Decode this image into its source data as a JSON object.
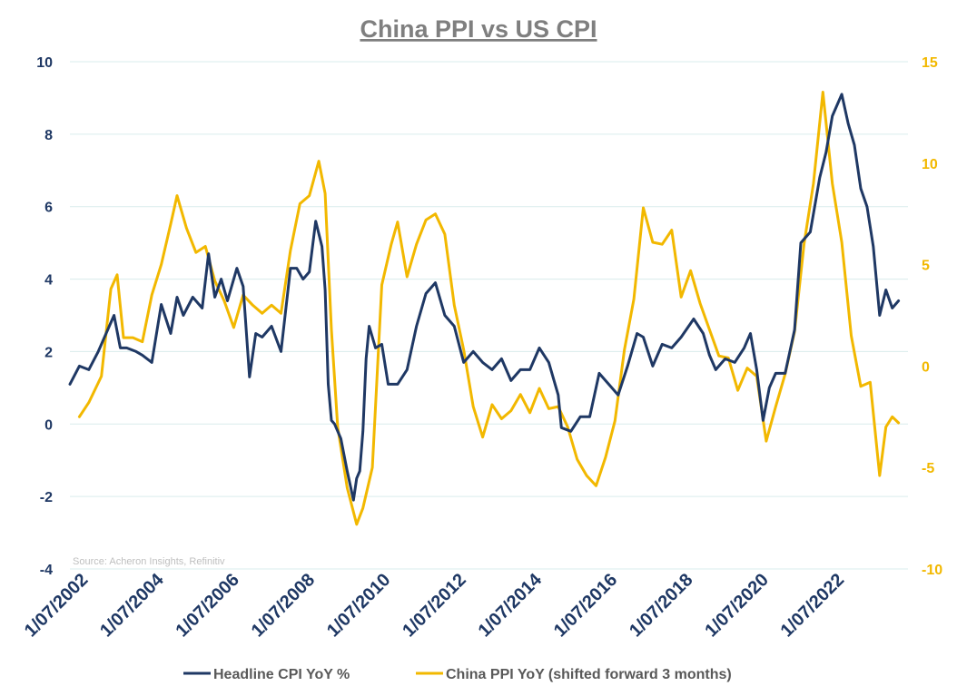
{
  "chart_data": {
    "type": "line",
    "title": "China PPI vs US CPI",
    "source": "Source: Acheron Insights, Refinitiv",
    "colors": {
      "cpi": "#1f3864",
      "ppi": "#f2b800",
      "title": "#7f7f7f",
      "grid": "#d9ecec"
    },
    "grid": true,
    "legend_position": "bottom",
    "x_axis": {
      "type": "date",
      "range": [
        "2002-01",
        "2024-03"
      ],
      "tick_labels": [
        "1/07/2002",
        "1/07/2004",
        "1/07/2006",
        "1/07/2008",
        "1/07/2010",
        "1/07/2012",
        "1/07/2014",
        "1/07/2016",
        "1/07/2018",
        "1/07/2020",
        "1/07/2022"
      ],
      "tick_dates": [
        "2002-07",
        "2004-07",
        "2006-07",
        "2008-07",
        "2010-07",
        "2012-07",
        "2014-07",
        "2016-07",
        "2018-07",
        "2020-07",
        "2022-07"
      ]
    },
    "y_left": {
      "ylim": [
        -4,
        10
      ],
      "ticks": [
        "-4",
        "-2",
        "0",
        "2",
        "4",
        "6",
        "8",
        "10"
      ]
    },
    "y_right": {
      "ylim": [
        -10,
        15
      ],
      "ticks": [
        "-10",
        "-5",
        "0",
        "5",
        "10",
        "15"
      ]
    },
    "series": [
      {
        "name": "Headline CPI YoY %",
        "axis": "left",
        "points": [
          [
            "2002-01",
            1.1
          ],
          [
            "2002-04",
            1.6
          ],
          [
            "2002-07",
            1.5
          ],
          [
            "2002-10",
            2.0
          ],
          [
            "2003-01",
            2.6
          ],
          [
            "2003-03",
            3.0
          ],
          [
            "2003-05",
            2.1
          ],
          [
            "2003-07",
            2.1
          ],
          [
            "2003-10",
            2.0
          ],
          [
            "2003-12",
            1.9
          ],
          [
            "2004-03",
            1.7
          ],
          [
            "2004-06",
            3.3
          ],
          [
            "2004-09",
            2.5
          ],
          [
            "2004-11",
            3.5
          ],
          [
            "2005-01",
            3.0
          ],
          [
            "2005-04",
            3.5
          ],
          [
            "2005-07",
            3.2
          ],
          [
            "2005-09",
            4.7
          ],
          [
            "2005-11",
            3.5
          ],
          [
            "2006-01",
            4.0
          ],
          [
            "2006-03",
            3.4
          ],
          [
            "2006-06",
            4.3
          ],
          [
            "2006-08",
            3.8
          ],
          [
            "2006-10",
            1.3
          ],
          [
            "2006-12",
            2.5
          ],
          [
            "2007-02",
            2.4
          ],
          [
            "2007-05",
            2.7
          ],
          [
            "2007-08",
            2.0
          ],
          [
            "2007-11",
            4.3
          ],
          [
            "2008-01",
            4.3
          ],
          [
            "2008-03",
            4.0
          ],
          [
            "2008-05",
            4.2
          ],
          [
            "2008-07",
            5.6
          ],
          [
            "2008-09",
            4.9
          ],
          [
            "2008-10",
            3.7
          ],
          [
            "2008-11",
            1.1
          ],
          [
            "2008-12",
            0.1
          ],
          [
            "2009-01",
            0.0
          ],
          [
            "2009-03",
            -0.4
          ],
          [
            "2009-05",
            -1.3
          ],
          [
            "2009-07",
            -2.1
          ],
          [
            "2009-08",
            -1.5
          ],
          [
            "2009-09",
            -1.3
          ],
          [
            "2009-10",
            -0.2
          ],
          [
            "2009-11",
            1.8
          ],
          [
            "2009-12",
            2.7
          ],
          [
            "2010-02",
            2.1
          ],
          [
            "2010-04",
            2.2
          ],
          [
            "2010-06",
            1.1
          ],
          [
            "2010-09",
            1.1
          ],
          [
            "2010-12",
            1.5
          ],
          [
            "2011-03",
            2.7
          ],
          [
            "2011-06",
            3.6
          ],
          [
            "2011-09",
            3.9
          ],
          [
            "2011-12",
            3.0
          ],
          [
            "2012-03",
            2.7
          ],
          [
            "2012-06",
            1.7
          ],
          [
            "2012-09",
            2.0
          ],
          [
            "2012-12",
            1.7
          ],
          [
            "2013-03",
            1.5
          ],
          [
            "2013-06",
            1.8
          ],
          [
            "2013-09",
            1.2
          ],
          [
            "2013-12",
            1.5
          ],
          [
            "2014-03",
            1.5
          ],
          [
            "2014-06",
            2.1
          ],
          [
            "2014-09",
            1.7
          ],
          [
            "2014-12",
            0.8
          ],
          [
            "2015-01",
            -0.1
          ],
          [
            "2015-04",
            -0.2
          ],
          [
            "2015-07",
            0.2
          ],
          [
            "2015-10",
            0.2
          ],
          [
            "2016-01",
            1.4
          ],
          [
            "2016-04",
            1.1
          ],
          [
            "2016-07",
            0.8
          ],
          [
            "2016-10",
            1.6
          ],
          [
            "2017-01",
            2.5
          ],
          [
            "2017-03",
            2.4
          ],
          [
            "2017-06",
            1.6
          ],
          [
            "2017-09",
            2.2
          ],
          [
            "2017-12",
            2.1
          ],
          [
            "2018-03",
            2.4
          ],
          [
            "2018-07",
            2.9
          ],
          [
            "2018-10",
            2.5
          ],
          [
            "2018-12",
            1.9
          ],
          [
            "2019-02",
            1.5
          ],
          [
            "2019-05",
            1.8
          ],
          [
            "2019-08",
            1.7
          ],
          [
            "2019-11",
            2.1
          ],
          [
            "2019-12",
            2.3
          ],
          [
            "2020-01",
            2.5
          ],
          [
            "2020-03",
            1.5
          ],
          [
            "2020-05",
            0.1
          ],
          [
            "2020-07",
            1.0
          ],
          [
            "2020-09",
            1.4
          ],
          [
            "2020-12",
            1.4
          ],
          [
            "2021-03",
            2.6
          ],
          [
            "2021-05",
            5.0
          ],
          [
            "2021-08",
            5.3
          ],
          [
            "2021-11",
            6.8
          ],
          [
            "2022-01",
            7.5
          ],
          [
            "2022-03",
            8.5
          ],
          [
            "2022-06",
            9.1
          ],
          [
            "2022-08",
            8.3
          ],
          [
            "2022-10",
            7.7
          ],
          [
            "2022-12",
            6.5
          ],
          [
            "2023-02",
            6.0
          ],
          [
            "2023-04",
            4.9
          ],
          [
            "2023-06",
            3.0
          ],
          [
            "2023-08",
            3.7
          ],
          [
            "2023-10",
            3.2
          ],
          [
            "2023-12",
            3.4
          ]
        ]
      },
      {
        "name": "China PPI YoY (shifted forward 3 months)",
        "axis": "right",
        "points": [
          [
            "2002-04",
            -2.5
          ],
          [
            "2002-07",
            -1.8
          ],
          [
            "2002-11",
            -0.5
          ],
          [
            "2003-02",
            3.8
          ],
          [
            "2003-04",
            4.5
          ],
          [
            "2003-06",
            1.4
          ],
          [
            "2003-09",
            1.4
          ],
          [
            "2003-12",
            1.2
          ],
          [
            "2004-03",
            3.5
          ],
          [
            "2004-06",
            5.0
          ],
          [
            "2004-09",
            7.0
          ],
          [
            "2004-11",
            8.4
          ],
          [
            "2005-02",
            6.8
          ],
          [
            "2005-05",
            5.6
          ],
          [
            "2005-08",
            5.9
          ],
          [
            "2005-11",
            4.2
          ],
          [
            "2006-02",
            3.2
          ],
          [
            "2006-05",
            1.9
          ],
          [
            "2006-08",
            3.5
          ],
          [
            "2006-11",
            3.0
          ],
          [
            "2007-02",
            2.6
          ],
          [
            "2007-05",
            3.0
          ],
          [
            "2007-08",
            2.6
          ],
          [
            "2007-11",
            5.7
          ],
          [
            "2008-02",
            8.0
          ],
          [
            "2008-05",
            8.4
          ],
          [
            "2008-08",
            10.1
          ],
          [
            "2008-10",
            8.5
          ],
          [
            "2008-12",
            1.8
          ],
          [
            "2009-02",
            -3.0
          ],
          [
            "2009-05",
            -6.0
          ],
          [
            "2009-08",
            -7.8
          ],
          [
            "2009-10",
            -7.0
          ],
          [
            "2010-01",
            -5.0
          ],
          [
            "2010-04",
            4.0
          ],
          [
            "2010-07",
            6.0
          ],
          [
            "2010-09",
            7.1
          ],
          [
            "2010-12",
            4.4
          ],
          [
            "2011-03",
            6.0
          ],
          [
            "2011-06",
            7.2
          ],
          [
            "2011-09",
            7.5
          ],
          [
            "2011-12",
            6.5
          ],
          [
            "2012-03",
            3.0
          ],
          [
            "2012-06",
            0.8
          ],
          [
            "2012-09",
            -2.0
          ],
          [
            "2012-12",
            -3.5
          ],
          [
            "2013-03",
            -1.9
          ],
          [
            "2013-06",
            -2.6
          ],
          [
            "2013-09",
            -2.2
          ],
          [
            "2013-12",
            -1.4
          ],
          [
            "2014-03",
            -2.3
          ],
          [
            "2014-06",
            -1.1
          ],
          [
            "2014-09",
            -2.1
          ],
          [
            "2014-12",
            -2.0
          ],
          [
            "2015-03",
            -3.0
          ],
          [
            "2015-06",
            -4.6
          ],
          [
            "2015-09",
            -5.4
          ],
          [
            "2015-12",
            -5.9
          ],
          [
            "2016-03",
            -4.5
          ],
          [
            "2016-06",
            -2.7
          ],
          [
            "2016-09",
            0.8
          ],
          [
            "2016-12",
            3.3
          ],
          [
            "2017-03",
            7.8
          ],
          [
            "2017-06",
            6.1
          ],
          [
            "2017-09",
            6.0
          ],
          [
            "2017-12",
            6.7
          ],
          [
            "2018-03",
            3.4
          ],
          [
            "2018-06",
            4.7
          ],
          [
            "2018-09",
            3.1
          ],
          [
            "2018-12",
            1.8
          ],
          [
            "2019-03",
            0.5
          ],
          [
            "2019-06",
            0.4
          ],
          [
            "2019-09",
            -1.2
          ],
          [
            "2019-12",
            -0.1
          ],
          [
            "2020-03",
            -0.5
          ],
          [
            "2020-06",
            -3.7
          ],
          [
            "2020-09",
            -2.0
          ],
          [
            "2020-12",
            -0.4
          ],
          [
            "2021-03",
            1.7
          ],
          [
            "2021-06",
            6.0
          ],
          [
            "2021-09",
            9.0
          ],
          [
            "2021-12",
            13.5
          ],
          [
            "2022-03",
            9.0
          ],
          [
            "2022-06",
            6.1
          ],
          [
            "2022-09",
            1.5
          ],
          [
            "2022-12",
            -1.0
          ],
          [
            "2023-03",
            -0.8
          ],
          [
            "2023-06",
            -5.4
          ],
          [
            "2023-08",
            -3.0
          ],
          [
            "2023-10",
            -2.5
          ],
          [
            "2023-12",
            -2.8
          ]
        ]
      }
    ]
  }
}
